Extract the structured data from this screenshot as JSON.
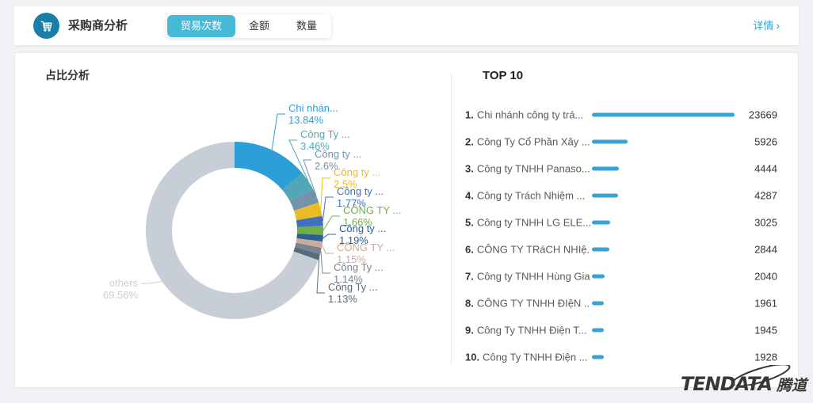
{
  "header": {
    "title": "采购商分析",
    "tabs": [
      {
        "label": "贸易次数",
        "active": true
      },
      {
        "label": "金额",
        "active": false
      },
      {
        "label": "数量",
        "active": false
      }
    ],
    "detail_link": {
      "label": "详情",
      "chevron": "›"
    }
  },
  "left_panel": {
    "title": "占比分析"
  },
  "chart_data": {
    "type": "pie",
    "donut": true,
    "title": "占比分析",
    "legend_position": "none",
    "slices": [
      {
        "label": "Chi nhán...",
        "pct": 13.84,
        "color": "#2d9fd8"
      },
      {
        "label": "Công Ty ...",
        "pct": 3.46,
        "color": "#52a7b5"
      },
      {
        "label": "Công ty ...",
        "pct": 2.6,
        "color": "#7593ab"
      },
      {
        "label": "Công ty ...",
        "pct": 2.5,
        "color": "#e9bc22"
      },
      {
        "label": "Công ty ...",
        "pct": 1.77,
        "color": "#3e70c4"
      },
      {
        "label": "CÔNG TY ...",
        "pct": 1.66,
        "color": "#6fae49"
      },
      {
        "label": "Công ty ...",
        "pct": 1.19,
        "color": "#2b6093"
      },
      {
        "label": "CÔNG TY ...",
        "pct": 1.15,
        "color": "#ccab9c"
      },
      {
        "label": "Công Ty ...",
        "pct": 1.14,
        "color": "#79848f"
      },
      {
        "label": "Công Ty ...",
        "pct": 1.13,
        "color": "#576b7b"
      },
      {
        "label": "others",
        "pct": 69.56,
        "color": "#c7ced7"
      }
    ]
  },
  "right_panel": {
    "title": "TOP 10",
    "max_value": 23669,
    "bar_color": "#38a3d6",
    "rows": [
      {
        "rank": "1.",
        "name": "Chi nhánh công ty trá...",
        "value": 23669
      },
      {
        "rank": "2.",
        "name": "Công Ty Cổ Phần Xây ...",
        "value": 5926
      },
      {
        "rank": "3.",
        "name": "Công ty TNHH Panaso...",
        "value": 4444
      },
      {
        "rank": "4.",
        "name": "Công ty Trách Nhiệm ...",
        "value": 4287
      },
      {
        "rank": "5.",
        "name": "Công ty TNHH LG ELE...",
        "value": 3025
      },
      {
        "rank": "6.",
        "name": "CÔNG TY TRáCH NHIệ...",
        "value": 2844
      },
      {
        "rank": "7.",
        "name": "Công ty TNHH Hùng Gia",
        "value": 2040
      },
      {
        "rank": "8.",
        "name": "CÔNG TY TNHH ĐIệN ...",
        "value": 1961
      },
      {
        "rank": "9.",
        "name": "Công Ty TNHH Điện T...",
        "value": 1945
      },
      {
        "rank": "10.",
        "name": "Công Ty TNHH Điện ...",
        "value": 1928
      }
    ]
  },
  "watermark": {
    "brand": "TENDATA",
    "brand_cn": "腾道"
  },
  "colors": {
    "accent": "#2aa7dc",
    "tab_active_bg": "#49b9d8",
    "icon_bg": "#1a7fa8",
    "bar": "#38a3d6",
    "others_gray": "#c7ced7"
  }
}
